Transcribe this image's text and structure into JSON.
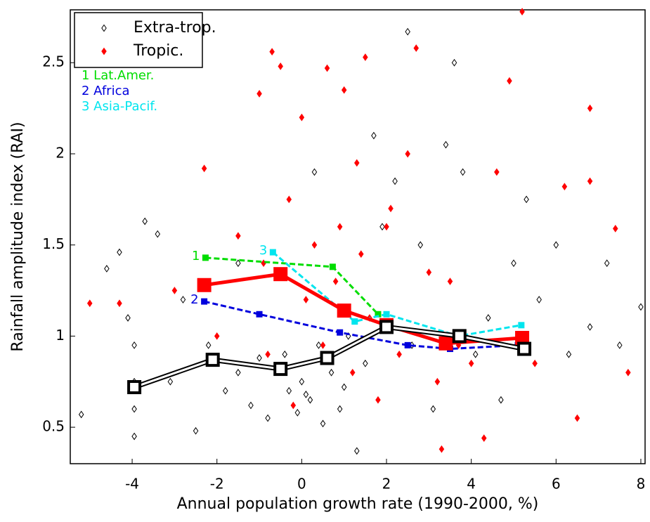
{
  "chart_data": {
    "type": "scatter",
    "x_label": "Annual population growth rate (1990-2000, %)",
    "y_label": "Rainfall amplitude index (RAI)",
    "xlim": [
      -5.46,
      8.1
    ],
    "ylim": [
      0.3,
      2.79
    ],
    "xticks": [
      -4,
      -2,
      0,
      2,
      4,
      6,
      8
    ],
    "yticks": [
      0.5,
      1,
      1.5,
      2,
      2.5
    ],
    "legend": "upper left",
    "series": [
      {
        "name": "Extra-trop.",
        "color": "#000000",
        "marker": "open-diamond",
        "x": [
          -5.2,
          -4.6,
          -4.3,
          -4.1,
          -3.95,
          -3.95,
          -3.95,
          -3.95,
          -3.7,
          -3.4,
          -3.1,
          -2.8,
          -2.5,
          -2.2,
          -1.8,
          -1.5,
          -1.2,
          -1.0,
          -0.8,
          -0.5,
          -0.3,
          -0.1,
          0.0,
          0.2,
          0.3,
          0.5,
          0.7,
          0.9,
          1.1,
          1.3,
          1.5,
          1.7,
          1.9,
          2.2,
          2.5,
          2.6,
          2.8,
          3.1,
          3.4,
          3.6,
          3.8,
          4.1,
          4.4,
          4.7,
          5.0,
          5.3,
          5.6,
          6.0,
          6.3,
          6.8,
          7.2,
          7.5,
          8.0,
          -0.4,
          0.1,
          0.4,
          -1.5,
          1.0
        ],
        "values": [
          0.57,
          1.37,
          1.46,
          1.1,
          0.95,
          0.75,
          0.6,
          0.45,
          1.63,
          1.56,
          0.75,
          1.2,
          0.48,
          0.95,
          0.7,
          1.4,
          0.62,
          0.88,
          0.55,
          1.35,
          0.7,
          0.58,
          0.75,
          0.65,
          1.9,
          0.52,
          0.8,
          0.6,
          1.0,
          0.37,
          0.85,
          2.1,
          1.6,
          1.85,
          2.67,
          0.95,
          1.5,
          0.6,
          2.05,
          2.5,
          1.9,
          0.9,
          1.1,
          0.65,
          1.4,
          1.75,
          1.2,
          1.5,
          0.9,
          1.05,
          1.4,
          0.95,
          1.16,
          0.9,
          0.68,
          0.95,
          0.8,
          0.72
        ]
      },
      {
        "name": "Tropic.",
        "color": "#ff0000",
        "marker": "filled-diamond",
        "x": [
          -5.0,
          -4.3,
          -3.0,
          -2.3,
          -2.0,
          -1.5,
          -1.0,
          -0.9,
          -0.7,
          -0.5,
          -0.3,
          -0.2,
          0.0,
          0.1,
          0.3,
          0.5,
          0.6,
          0.8,
          0.9,
          1.0,
          1.2,
          1.3,
          1.5,
          1.6,
          1.8,
          2.0,
          2.1,
          2.3,
          2.5,
          2.7,
          3.0,
          3.2,
          3.3,
          3.5,
          3.7,
          4.0,
          4.3,
          4.6,
          4.9,
          5.1,
          5.2,
          5.5,
          6.2,
          6.5,
          6.8,
          6.8,
          7.4,
          7.7,
          -0.8,
          1.4
        ],
        "values": [
          1.18,
          1.18,
          1.25,
          1.92,
          1.0,
          1.55,
          2.33,
          1.4,
          2.56,
          2.48,
          1.75,
          0.62,
          2.2,
          1.2,
          1.5,
          0.95,
          2.47,
          1.3,
          1.6,
          2.35,
          0.8,
          1.95,
          2.53,
          1.1,
          0.65,
          1.6,
          1.7,
          0.9,
          2.0,
          2.58,
          1.35,
          0.75,
          0.38,
          1.3,
          0.95,
          0.85,
          0.44,
          1.9,
          2.4,
          1.0,
          2.78,
          0.85,
          1.82,
          0.55,
          2.25,
          1.85,
          1.59,
          0.8,
          0.9,
          1.45
        ]
      },
      {
        "name": "1 Lat.Amer.",
        "label": "1",
        "color": "#00dd00",
        "style": "dashed",
        "x": [
          -2.27,
          0.73,
          1.8
        ],
        "values": [
          1.43,
          1.38,
          1.12
        ]
      },
      {
        "name": "2 Africa",
        "label": "2",
        "color": "#0000dd",
        "style": "dashed",
        "x": [
          -2.3,
          -1.0,
          0.9,
          2.5,
          3.5,
          5.1
        ],
        "values": [
          1.19,
          1.12,
          1.02,
          0.95,
          0.93,
          0.95
        ]
      },
      {
        "name": "3 Asia-Pacif.",
        "label": "3",
        "color": "#00e5ee",
        "style": "dashed",
        "x": [
          -0.68,
          1.25,
          2.0,
          3.7,
          5.18
        ],
        "values": [
          1.46,
          1.08,
          1.12,
          1.0,
          1.06
        ]
      },
      {
        "color": "#ff0000",
        "style": "thick",
        "x": [
          -2.3,
          -0.5,
          1.0,
          2.0,
          3.4,
          5.2
        ],
        "values": [
          1.28,
          1.34,
          1.14,
          1.06,
          0.96,
          0.99
        ]
      },
      {
        "color": "#000000",
        "style": "double",
        "x": [
          -3.95,
          -2.1,
          -0.5,
          0.6,
          2.0,
          3.72,
          5.25
        ],
        "values": [
          0.72,
          0.87,
          0.82,
          0.88,
          1.05,
          1.0,
          0.93
        ]
      }
    ]
  }
}
